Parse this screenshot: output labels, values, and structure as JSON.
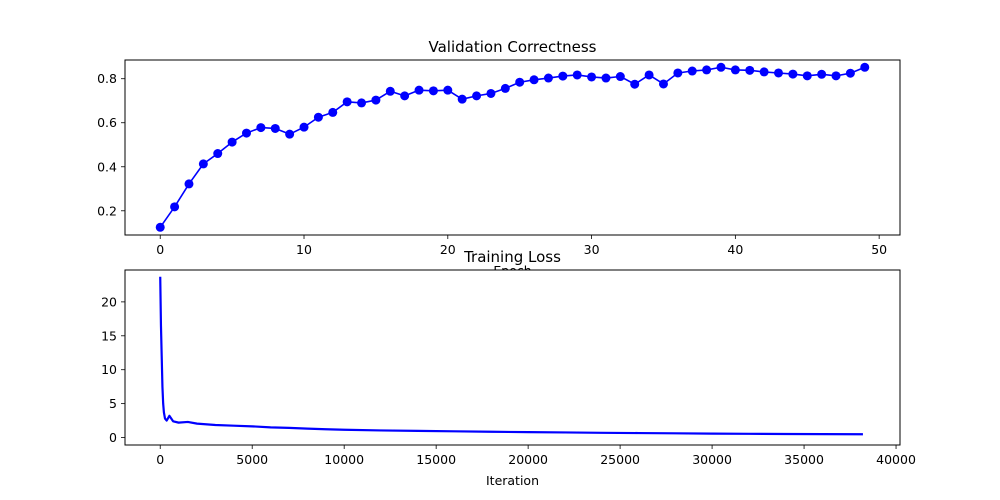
{
  "chart_data": [
    {
      "type": "line",
      "title": "Validation Correctness",
      "xlabel": "Epoch",
      "ylabel": "",
      "xlim": [
        -2.45,
        51.45
      ],
      "ylim": [
        0.09,
        0.885
      ],
      "xticks": [
        0,
        10,
        20,
        30,
        40,
        50
      ],
      "yticks": [
        0.2,
        0.4,
        0.6,
        0.8
      ],
      "xtick_labels": [
        "0",
        "10",
        "20",
        "30",
        "40",
        "50"
      ],
      "ytick_labels": [
        "0.2",
        "0.4",
        "0.6",
        "0.8"
      ],
      "grid": false,
      "markers": true,
      "series": [
        {
          "color": "#0000ff",
          "x": [
            0,
            1,
            2,
            3,
            4,
            5,
            6,
            7,
            8,
            9,
            10,
            11,
            12,
            13,
            14,
            15,
            16,
            17,
            18,
            19,
            20,
            21,
            22,
            23,
            24,
            25,
            26,
            27,
            28,
            29,
            30,
            31,
            32,
            33,
            34,
            35,
            36,
            37,
            38,
            39,
            40,
            41,
            42,
            43,
            44,
            45,
            46,
            47,
            48,
            49
          ],
          "values": [
            0.125,
            0.218,
            0.322,
            0.413,
            0.46,
            0.512,
            0.553,
            0.578,
            0.574,
            0.548,
            0.58,
            0.625,
            0.647,
            0.695,
            0.69,
            0.703,
            0.743,
            0.722,
            0.748,
            0.745,
            0.748,
            0.707,
            0.722,
            0.733,
            0.756,
            0.784,
            0.795,
            0.803,
            0.812,
            0.817,
            0.808,
            0.803,
            0.81,
            0.775,
            0.817,
            0.776,
            0.826,
            0.835,
            0.84,
            0.852,
            0.84,
            0.838,
            0.831,
            0.826,
            0.821,
            0.813,
            0.82,
            0.813,
            0.825,
            0.852
          ]
        }
      ]
    },
    {
      "type": "line",
      "title": "Training Loss",
      "xlabel": "Iteration",
      "ylabel": "",
      "xlim": [
        -1915,
        40215
      ],
      "ylim": [
        -1.1,
        24.7
      ],
      "xticks": [
        0,
        5000,
        10000,
        15000,
        20000,
        25000,
        30000,
        35000,
        40000
      ],
      "yticks": [
        0,
        5,
        10,
        15,
        20
      ],
      "xtick_labels": [
        "0",
        "5000",
        "10000",
        "15000",
        "20000",
        "25000",
        "30000",
        "35000",
        "40000"
      ],
      "ytick_labels": [
        "0",
        "5",
        "10",
        "15",
        "20"
      ],
      "grid": false,
      "markers": false,
      "series": [
        {
          "color": "#0000ff",
          "x": [
            0,
            40,
            80,
            120,
            160,
            200,
            260,
            350,
            500,
            700,
            1000,
            1500,
            2000,
            3000,
            4000,
            5000,
            6000,
            7000,
            8000,
            9000,
            10000,
            12000,
            14000,
            16000,
            18000,
            20000,
            22000,
            24000,
            26000,
            28000,
            30000,
            32000,
            34000,
            36000,
            38200
          ],
          "values": [
            23.7,
            16.5,
            12.0,
            7.5,
            5.0,
            3.7,
            2.8,
            2.5,
            3.2,
            2.4,
            2.2,
            2.3,
            2.05,
            1.85,
            1.75,
            1.65,
            1.5,
            1.42,
            1.32,
            1.22,
            1.15,
            1.05,
            0.98,
            0.92,
            0.85,
            0.8,
            0.75,
            0.7,
            0.66,
            0.62,
            0.58,
            0.55,
            0.52,
            0.5,
            0.48
          ]
        }
      ]
    }
  ]
}
